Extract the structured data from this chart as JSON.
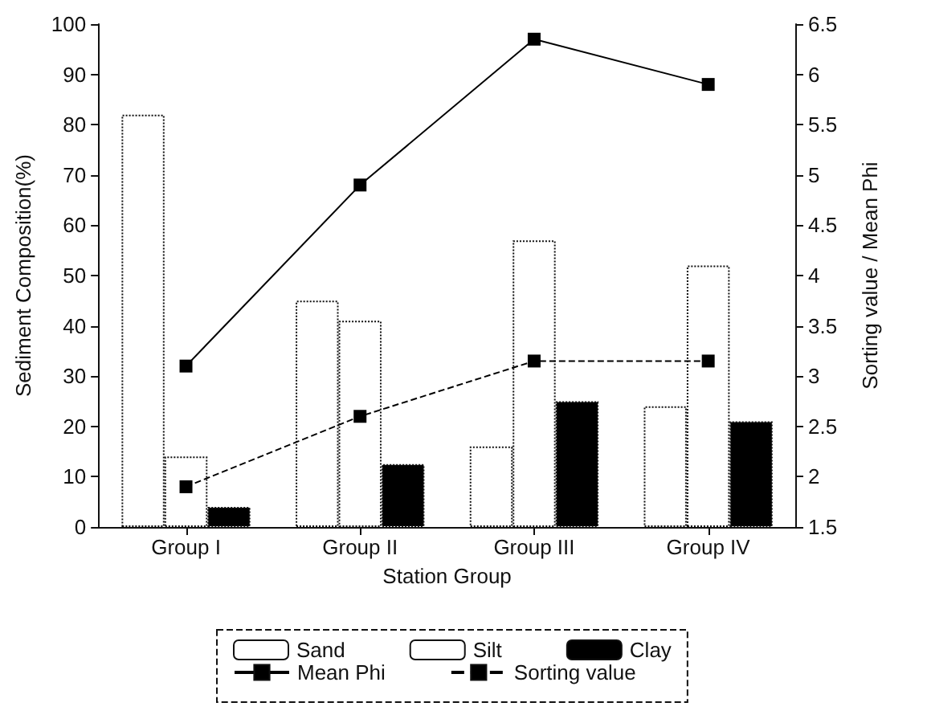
{
  "chart_data": {
    "type": "bar",
    "xlabel": "Station Group",
    "ylabel": "Sediment Composition(%)",
    "y2label": "Sorting value / Mean Phi",
    "categories": [
      "Group I",
      "Group II",
      "Group III",
      "Group IV"
    ],
    "series": [
      {
        "name": "Sand",
        "color": "#ffffff",
        "values": [
          82,
          45,
          16,
          24
        ]
      },
      {
        "name": "Silt",
        "color": "#ffffff",
        "values": [
          14,
          41,
          57,
          52
        ]
      },
      {
        "name": "Clay",
        "color": "#000000",
        "values": [
          4,
          12.5,
          25,
          21
        ]
      },
      {
        "name": "Mean Phi",
        "type": "line",
        "axis": "y2",
        "color": "#000000",
        "marker": "square",
        "line_style": "solid",
        "values": [
          3.1,
          4.9,
          6.35,
          5.9
        ]
      },
      {
        "name": "Sorting value",
        "type": "line",
        "axis": "y2",
        "color": "#000000",
        "marker": "square",
        "line_style": "dashed",
        "values": [
          1.9,
          2.6,
          3.15,
          3.15
        ]
      }
    ],
    "ylim": [
      0,
      100
    ],
    "yticks": [
      0,
      10,
      20,
      30,
      40,
      50,
      60,
      70,
      80,
      90,
      100
    ],
    "y2lim": [
      1.5,
      6.5
    ],
    "y2ticks": [
      1.5,
      2,
      2.5,
      3,
      3.5,
      4,
      4.5,
      5,
      5.5,
      6,
      6.5
    ],
    "grid": false,
    "legend": "bottom"
  }
}
